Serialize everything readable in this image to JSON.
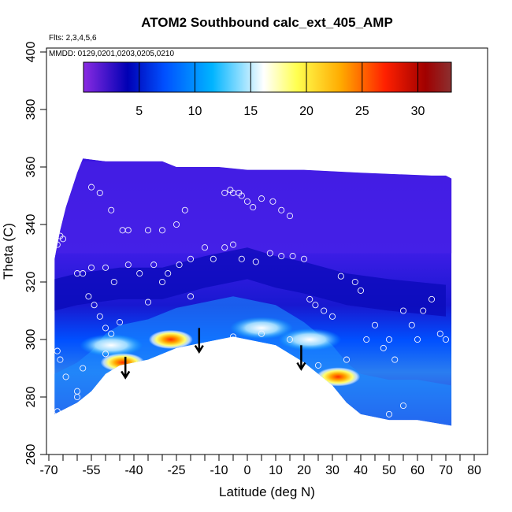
{
  "chart_data": {
    "type": "heatmap",
    "title": "ATOM2 Southbound calc_ext_405_AMP",
    "flights_note": "Flts: 2,3,4,5,6",
    "dates_note": "MMDD: 0129,0201,0203,0205,0210",
    "xlabel": "Latitude (deg N)",
    "ylabel": "Theta (C)",
    "xlim": [
      -70,
      85
    ],
    "ylim": [
      260,
      400
    ],
    "xticks": [
      -70,
      -55,
      -40,
      -25,
      -10,
      0,
      10,
      20,
      30,
      40,
      50,
      60,
      70,
      80
    ],
    "xtick_labels": [
      "-70",
      "-55",
      "-40",
      "-25",
      "-10",
      "0",
      "10",
      "20",
      "30",
      "40",
      "50",
      "60",
      "70",
      "80"
    ],
    "yticks": [
      260,
      280,
      300,
      320,
      340,
      360,
      380,
      400
    ],
    "ytick_labels": [
      "260",
      "280",
      "300",
      "320",
      "340",
      "360",
      "380",
      "400"
    ],
    "colorbar": {
      "min": 0,
      "max": 33,
      "ticks": [
        5,
        10,
        15,
        20,
        25,
        30
      ],
      "tick_labels": [
        "5",
        "10",
        "15",
        "20",
        "25",
        "30"
      ],
      "colors": [
        "#8a2be2",
        "#0000b4",
        "#0050ff",
        "#00b4ff",
        "#ffffff",
        "#ffff50",
        "#ffaa00",
        "#ff2000",
        "#a00000",
        "#8b3030"
      ]
    },
    "field_top_boundary": [
      [
        -68,
        328
      ],
      [
        -66,
        338
      ],
      [
        -64,
        346
      ],
      [
        -62,
        352
      ],
      [
        -60,
        358
      ],
      [
        -58,
        363
      ],
      [
        -50,
        362
      ],
      [
        -30,
        362
      ],
      [
        -25,
        360
      ],
      [
        -20,
        360
      ],
      [
        -10,
        360
      ],
      [
        0,
        359
      ],
      [
        20,
        359
      ],
      [
        40,
        358
      ],
      [
        65,
        357
      ],
      [
        70,
        357
      ],
      [
        72,
        356
      ]
    ],
    "field_bottom_boundary": [
      [
        -68,
        274
      ],
      [
        -60,
        278
      ],
      [
        -55,
        282
      ],
      [
        -50,
        288
      ],
      [
        -45,
        291
      ],
      [
        -40,
        292
      ],
      [
        -35,
        293
      ],
      [
        -30,
        295
      ],
      [
        -25,
        297
      ],
      [
        -20,
        298
      ],
      [
        -15,
        299
      ],
      [
        -10,
        300
      ],
      [
        -5,
        301
      ],
      [
        0,
        300
      ],
      [
        5,
        299
      ],
      [
        10,
        298
      ],
      [
        15,
        295
      ],
      [
        20,
        292
      ],
      [
        25,
        288
      ],
      [
        30,
        284
      ],
      [
        35,
        278
      ],
      [
        40,
        274
      ],
      [
        50,
        272
      ],
      [
        60,
        272
      ],
      [
        72,
        270
      ]
    ],
    "tropopause_trough": [
      [
        -68,
        318
      ],
      [
        -60,
        320
      ],
      [
        -45,
        322
      ],
      [
        -30,
        322
      ],
      [
        -15,
        326
      ],
      [
        0,
        329
      ],
      [
        10,
        326
      ],
      [
        20,
        324
      ],
      [
        35,
        320
      ],
      [
        50,
        318
      ],
      [
        70,
        316
      ]
    ],
    "high_values": [
      {
        "lat": -27,
        "theta": 300,
        "value": 26
      },
      {
        "lat": -44,
        "theta": 292,
        "value": 30
      },
      {
        "lat": 32,
        "theta": 287,
        "value": 29
      },
      {
        "lat": 5,
        "theta": 304,
        "value": 15
      },
      {
        "lat": -48,
        "theta": 298,
        "value": 14
      },
      {
        "lat": 22,
        "theta": 300,
        "value": 12
      }
    ],
    "arrows": [
      {
        "lat": -43,
        "theta_top": 294,
        "theta_bottom": 287
      },
      {
        "lat": -17,
        "theta_top": 304,
        "theta_bottom": 296
      },
      {
        "lat": 19,
        "theta_top": 298,
        "theta_bottom": 290
      }
    ],
    "sample_points": [
      [
        -55,
        353
      ],
      [
        -52,
        351
      ],
      [
        -48,
        345
      ],
      [
        -44,
        338
      ],
      [
        -42,
        338
      ],
      [
        -35,
        338
      ],
      [
        -30,
        338
      ],
      [
        -25,
        340
      ],
      [
        -22,
        345
      ],
      [
        -8,
        351
      ],
      [
        -6,
        352
      ],
      [
        -5,
        351
      ],
      [
        -3,
        351
      ],
      [
        -2,
        350
      ],
      [
        0,
        348
      ],
      [
        2,
        346
      ],
      [
        5,
        349
      ],
      [
        9,
        348
      ],
      [
        12,
        345
      ],
      [
        15,
        343
      ],
      [
        -67,
        333
      ],
      [
        -66,
        336
      ],
      [
        -65,
        335
      ],
      [
        -60,
        323
      ],
      [
        -58,
        323
      ],
      [
        -55,
        325
      ],
      [
        -50,
        325
      ],
      [
        -47,
        320
      ],
      [
        -42,
        326
      ],
      [
        -38,
        323
      ],
      [
        -33,
        326
      ],
      [
        -28,
        323
      ],
      [
        -20,
        328
      ],
      [
        -15,
        332
      ],
      [
        -12,
        328
      ],
      [
        -8,
        332
      ],
      [
        -5,
        333
      ],
      [
        -2,
        328
      ],
      [
        3,
        327
      ],
      [
        8,
        330
      ],
      [
        12,
        329
      ],
      [
        16,
        329
      ],
      [
        20,
        328
      ],
      [
        -56,
        315
      ],
      [
        -54,
        312
      ],
      [
        -52,
        308
      ],
      [
        -50,
        304
      ],
      [
        -48,
        302
      ],
      [
        -45,
        306
      ],
      [
        -35,
        313
      ],
      [
        -30,
        320
      ],
      [
        -24,
        326
      ],
      [
        -20,
        315
      ],
      [
        22,
        314
      ],
      [
        24,
        312
      ],
      [
        27,
        310
      ],
      [
        30,
        308
      ],
      [
        33,
        322
      ],
      [
        38,
        320
      ],
      [
        40,
        317
      ],
      [
        45,
        305
      ],
      [
        50,
        300
      ],
      [
        55,
        310
      ],
      [
        58,
        305
      ],
      [
        62,
        310
      ],
      [
        65,
        314
      ],
      [
        68,
        302
      ],
      [
        70,
        300
      ],
      [
        -67,
        296
      ],
      [
        -66,
        293
      ],
      [
        -64,
        287
      ],
      [
        -60,
        282
      ],
      [
        -58,
        290
      ],
      [
        -50,
        295
      ],
      [
        -30,
        293
      ],
      [
        -5,
        301
      ],
      [
        5,
        302
      ],
      [
        15,
        300
      ],
      [
        25,
        291
      ],
      [
        35,
        293
      ],
      [
        42,
        300
      ],
      [
        48,
        297
      ],
      [
        52,
        293
      ],
      [
        60,
        300
      ],
      [
        50,
        274
      ],
      [
        55,
        277
      ],
      [
        -67,
        275
      ],
      [
        -60,
        280
      ]
    ]
  }
}
